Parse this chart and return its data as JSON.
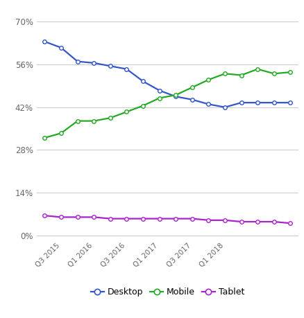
{
  "x_labels": [
    "Q3 2015",
    "Q1 2016",
    "Q3 2016",
    "Q1 2017",
    "Q3 2017",
    "Q1 2018"
  ],
  "desktop": [
    63.5,
    61.5,
    57.0,
    56.5,
    55.5,
    54.5,
    50.5,
    47.5,
    45.5,
    44.5,
    43.0,
    42.0,
    43.5,
    43.5,
    43.5,
    43.5
  ],
  "mobile": [
    32.0,
    33.5,
    37.5,
    37.5,
    38.5,
    40.5,
    42.5,
    45.0,
    46.0,
    48.5,
    51.0,
    53.0,
    52.5,
    54.5,
    53.0,
    53.5
  ],
  "tablet": [
    6.5,
    6.0,
    6.0,
    6.0,
    5.5,
    5.5,
    5.5,
    5.5,
    5.5,
    5.5,
    5.0,
    5.0,
    4.5,
    4.5,
    4.5,
    4.0
  ],
  "n_points": 16,
  "desktop_color": "#3355cc",
  "mobile_color": "#22aa22",
  "tablet_color": "#aa22cc",
  "bg_color": "#ffffff",
  "grid_color": "#cccccc",
  "yticks": [
    0,
    14,
    28,
    42,
    56,
    70
  ],
  "ytick_labels": [
    "0%",
    "14%",
    "28%",
    "42%",
    "56%",
    "70%"
  ],
  "ylim": [
    -1,
    74
  ],
  "legend_labels": [
    "Desktop",
    "Mobile",
    "Tablet"
  ]
}
